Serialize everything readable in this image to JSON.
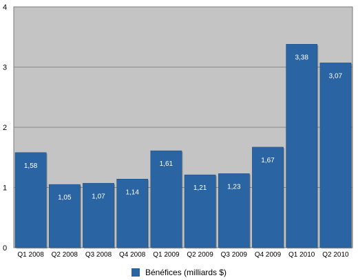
{
  "chart_data": {
    "type": "bar",
    "categories": [
      "Q1 2008",
      "Q2 2008",
      "Q3 2008",
      "Q4 2008",
      "Q1 2009",
      "Q2 2009",
      "Q3 2009",
      "Q4 2009",
      "Q1 2010",
      "Q2 2010"
    ],
    "series": [
      {
        "name": "Bénéfices (milliards $)",
        "values": [
          1.58,
          1.05,
          1.07,
          1.14,
          1.61,
          1.21,
          1.23,
          1.67,
          3.38,
          3.07
        ],
        "labels": [
          "1,58",
          "1,05",
          "1,07",
          "1,14",
          "1,61",
          "1,21",
          "1,23",
          "1,67",
          "3,38",
          "3,07"
        ]
      }
    ],
    "yticks": [
      "0",
      "1",
      "2",
      "3",
      "4"
    ],
    "ylim": [
      0,
      4
    ],
    "grid": true,
    "legend": "bottom-center",
    "colors": {
      "bar": "#2a64a2",
      "plot_background": "#c4c4c4",
      "gridline": "#8a8a8a"
    }
  }
}
